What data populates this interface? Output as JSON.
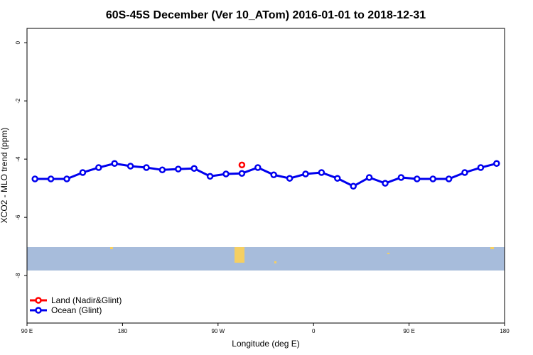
{
  "chart_data": {
    "type": "line",
    "title": "60S-45S December (Ver 10_ATom)   2016-01-01 to 2018-12-31",
    "x_label": "Longitude (deg E)",
    "y_label": "XCO2 - MLO trend (ppm)",
    "xlim": [
      90,
      540
    ],
    "ylim": [
      -9.63,
      0.49
    ],
    "xticks": [
      {
        "value": 90,
        "label": "90 E"
      },
      {
        "value": 180,
        "label": "180"
      },
      {
        "value": 270,
        "label": "90 W"
      },
      {
        "value": 360,
        "label": "0"
      },
      {
        "value": 450,
        "label": "90 E"
      },
      {
        "value": 540,
        "label": "180"
      }
    ],
    "yticks": [
      0,
      -2,
      -4,
      -6,
      -8
    ],
    "legend": "bottom-left",
    "series": [
      {
        "name": "Land (Nadir&Glint)",
        "color": "#ff0000",
        "x": [
          292.5
        ],
        "values": [
          -4.2
        ]
      },
      {
        "name": "Ocean (Glint)",
        "color": "#0000ee",
        "x": [
          97.5,
          112.5,
          127.5,
          142.5,
          157.5,
          172.5,
          187.5,
          202.5,
          217.5,
          232.5,
          247.5,
          262.5,
          277.5,
          292.5,
          307.5,
          322.5,
          337.5,
          352.5,
          367.5,
          382.5,
          397.5,
          412.5,
          427.5,
          442.5,
          457.5,
          472.5,
          487.5,
          502.5,
          517.5,
          532.5
        ],
        "values": [
          -4.68,
          -4.68,
          -4.68,
          -4.46,
          -4.29,
          -4.15,
          -4.24,
          -4.29,
          -4.37,
          -4.34,
          -4.32,
          -4.59,
          -4.51,
          -4.49,
          -4.29,
          -4.54,
          -4.66,
          -4.51,
          -4.46,
          -4.66,
          -4.93,
          -4.63,
          -4.83,
          -4.63,
          -4.68,
          -4.68,
          -4.68,
          -4.46,
          -4.29,
          -4.15
        ]
      }
    ]
  }
}
